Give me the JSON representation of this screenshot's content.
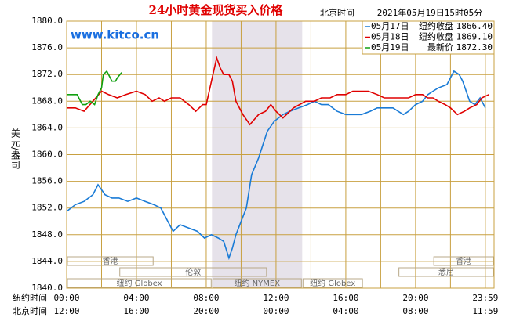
{
  "chart_data": {
    "type": "line",
    "title": "24小时黄金现货买入价格",
    "time_zone_label": "北京时间",
    "timestamp": "2021年05月19日15时05分",
    "watermark": "www.kitco.cn",
    "y_label": "美元/盎司",
    "ylim": [
      1840,
      1880
    ],
    "yticks": [
      {
        "value": 1840,
        "label": "1840.0"
      },
      {
        "value": 1844,
        "label": "1844.0"
      },
      {
        "value": 1848,
        "label": "1848.0"
      },
      {
        "value": 1852,
        "label": "1852.0"
      },
      {
        "value": 1856,
        "label": "1856.0"
      },
      {
        "value": 1860,
        "label": "1860.0"
      },
      {
        "value": 1864,
        "label": "1864.0"
      },
      {
        "value": 1868,
        "label": "1868.0"
      },
      {
        "value": 1872,
        "label": "1872.0"
      },
      {
        "value": 1876,
        "label": "1876.0"
      },
      {
        "value": 1880,
        "label": "1880.0"
      }
    ],
    "xlim": [
      0,
      24.5
    ],
    "x_gridlines": [
      0,
      2,
      4,
      6,
      8,
      10,
      12,
      14,
      16,
      18,
      20,
      22,
      24
    ],
    "x_axis_name": "纽约时间",
    "xticks": [
      {
        "value": 0,
        "label": "00:00"
      },
      {
        "value": 4,
        "label": "04:00"
      },
      {
        "value": 8,
        "label": "08:00"
      },
      {
        "value": 12,
        "label": "12:00"
      },
      {
        "value": 16,
        "label": "16:00"
      },
      {
        "value": 20,
        "label": "20:00"
      },
      {
        "value": 24,
        "label": "23:59"
      }
    ],
    "x2_axis_name": "北京时间",
    "x2ticks": [
      {
        "value": 0,
        "label": "12:00"
      },
      {
        "value": 4,
        "label": "16:00"
      },
      {
        "value": 8,
        "label": "20:00"
      },
      {
        "value": 12,
        "label": "00:00"
      },
      {
        "value": 16,
        "label": "04:00"
      },
      {
        "value": 20,
        "label": "08:00"
      },
      {
        "value": 24,
        "label": "11:59"
      }
    ],
    "grid": true,
    "highlight": {
      "start": 8.33,
      "end": 13.5
    },
    "sessions": [
      {
        "label": "香港",
        "row": 0,
        "start": 0,
        "end": 5
      },
      {
        "label": "香港",
        "row": 0,
        "start": 21,
        "end": 24.5
      },
      {
        "label": "伦敦",
        "row": 1,
        "start": 3,
        "end": 11.5
      },
      {
        "label": "悉尼",
        "row": 1,
        "start": 19,
        "end": 24.5
      },
      {
        "label": "纽约 Globex",
        "row": 2,
        "start": 0,
        "end": 8.33
      },
      {
        "label": "纽约 NYMEX",
        "row": 2,
        "start": 8.33,
        "end": 13.5
      },
      {
        "label": "纽约 Globex",
        "row": 2,
        "start": 13.5,
        "end": 17
      }
    ],
    "series": [
      {
        "name": "05月17日",
        "legend_text": "纽约收盘",
        "last_value": 1866.4,
        "last_value_label": "1866.40",
        "color": "#1a7bd6",
        "x": [
          0,
          0.5,
          1,
          1.5,
          1.8,
          2.2,
          2.6,
          3,
          3.5,
          4,
          4.5,
          5,
          5.4,
          5.8,
          6.1,
          6.5,
          7,
          7.5,
          7.9,
          8.3,
          8.7,
          9,
          9.3,
          9.5,
          9.7,
          10,
          10.3,
          10.6,
          11,
          11.5,
          11.9,
          12.4,
          12.8,
          13.3,
          13.8,
          14.2,
          14.6,
          15,
          15.5,
          16,
          16.5,
          16.9,
          17.4,
          17.8,
          18.3,
          18.7,
          19.3,
          19.6,
          20,
          20.4,
          20.7,
          21,
          21.3,
          21.8,
          22.2,
          22.5,
          22.7,
          23.1,
          23.4,
          23.7,
          24
        ],
        "values": [
          1851.5,
          1852.5,
          1853,
          1854,
          1855.5,
          1854,
          1853.5,
          1853.5,
          1853,
          1853.5,
          1853,
          1852.5,
          1852,
          1850,
          1848.5,
          1849.5,
          1849,
          1848.5,
          1847.5,
          1848,
          1847.5,
          1847,
          1844.5,
          1846,
          1848,
          1850,
          1852,
          1857,
          1859.5,
          1863.5,
          1865,
          1866,
          1866.5,
          1867,
          1867.5,
          1868,
          1867.5,
          1867.5,
          1866.5,
          1866,
          1866,
          1866,
          1866.5,
          1867,
          1867,
          1867,
          1866,
          1866.5,
          1867.5,
          1868,
          1869,
          1869.5,
          1870,
          1870.5,
          1872.5,
          1872,
          1871,
          1868,
          1867.5,
          1868.5,
          1867
        ]
      },
      {
        "name": "05月18日",
        "legend_text": "纽约收盘",
        "last_value": 1869.1,
        "last_value_label": "1869.10",
        "color": "#e00000",
        "x": [
          0,
          0.5,
          1,
          1.5,
          2,
          2.4,
          2.9,
          3.4,
          4,
          4.5,
          4.9,
          5.3,
          5.6,
          6,
          6.5,
          7,
          7.4,
          7.8,
          8,
          8.3,
          8.6,
          8.8,
          9,
          9.3,
          9.5,
          9.7,
          10.1,
          10.5,
          11,
          11.4,
          11.7,
          12,
          12.4,
          13,
          13.7,
          14.2,
          14.6,
          15.1,
          15.5,
          16,
          16.4,
          17,
          17.3,
          17.8,
          18.2,
          18.7,
          19.1,
          19.6,
          20,
          20.4,
          20.7,
          21,
          21.3,
          21.7,
          22,
          22.4,
          22.8,
          23.1,
          23.5,
          23.8,
          24.2
        ],
        "values": [
          1867,
          1867,
          1866.5,
          1868,
          1869.5,
          1869,
          1868.5,
          1869,
          1869.5,
          1869,
          1868,
          1868.5,
          1868,
          1868.5,
          1868.5,
          1867.5,
          1866.5,
          1867.5,
          1867.5,
          1871,
          1874.5,
          1873,
          1872,
          1872,
          1871,
          1868,
          1866,
          1864.5,
          1866,
          1866.5,
          1867.5,
          1866.5,
          1865.5,
          1867,
          1868,
          1868,
          1868.5,
          1868.5,
          1869,
          1869,
          1869.5,
          1869.5,
          1869.5,
          1869,
          1868.5,
          1868.5,
          1868.5,
          1868.5,
          1869,
          1869,
          1868.5,
          1868.5,
          1868,
          1867.5,
          1867,
          1866,
          1866.5,
          1867,
          1867.5,
          1868.5,
          1869
        ]
      },
      {
        "name": "05月19日",
        "legend_text": "最新价",
        "last_value": 1872.3,
        "last_value_label": "1872.30",
        "color": "#10a010",
        "x": [
          0,
          0.3,
          0.6,
          0.9,
          1.1,
          1.35,
          1.6,
          1.8,
          2.0,
          2.1,
          2.3,
          2.5,
          2.6,
          2.8,
          2.9,
          3.15
        ],
        "values": [
          1869,
          1869,
          1869,
          1867.5,
          1867.5,
          1868,
          1867.5,
          1869,
          1870,
          1872,
          1872.5,
          1871.5,
          1871,
          1871,
          1871.5,
          1872.3
        ]
      }
    ]
  }
}
